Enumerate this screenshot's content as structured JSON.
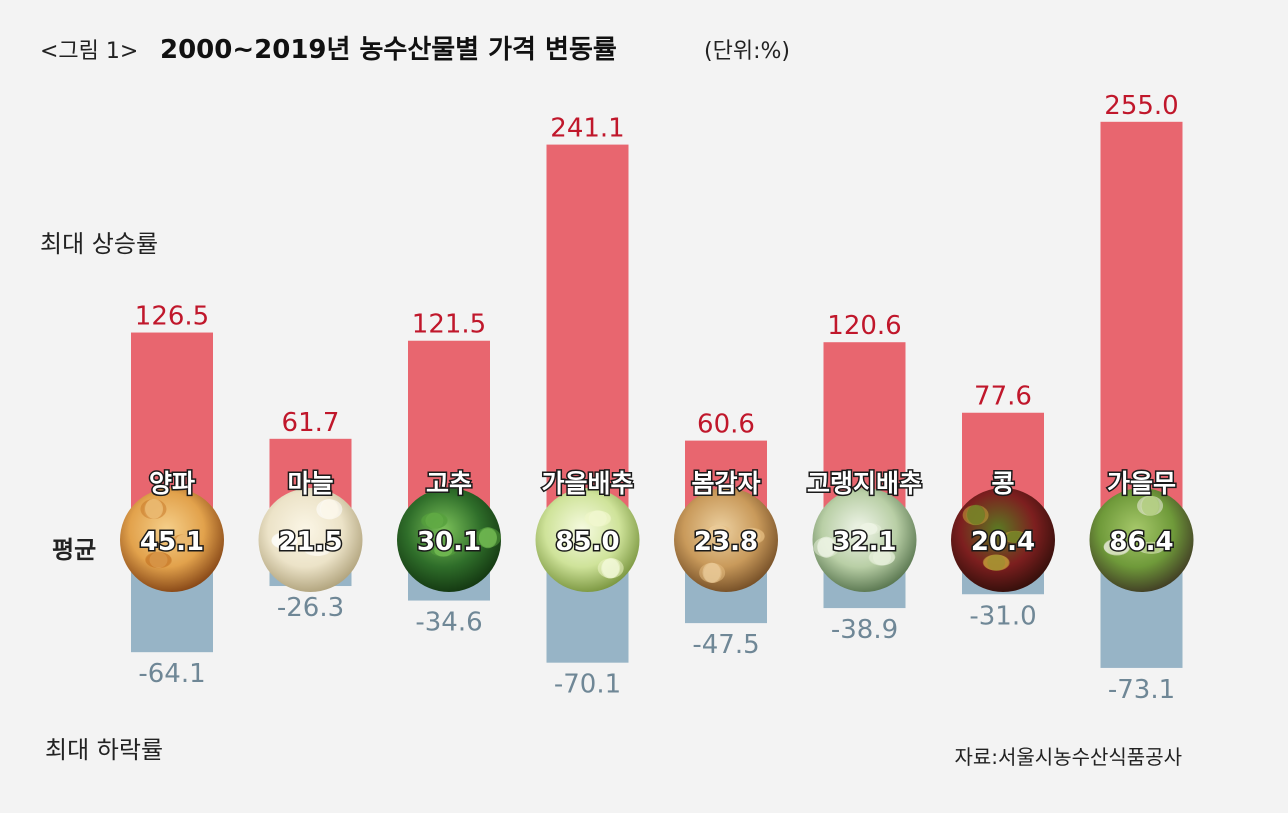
{
  "title": {
    "prefix": "<그림 1>",
    "main": "2000~2019년 농수산물별 가격 변동률",
    "unit": "(단위:%)"
  },
  "labels": {
    "max_side": "최대 상승률",
    "avg_side": "평균",
    "min_side": "최대 하락률"
  },
  "source": "자료:서울시농수산식품공사",
  "colors": {
    "max_bar": "#e8666f",
    "min_bar": "#97b4c6",
    "max_text": "#c0172b",
    "min_text": "#6f8796",
    "background": "#f3f3f3"
  },
  "chart_data": {
    "type": "bar",
    "title": "2000~2019년 농수산물별 가격 변동률",
    "unit": "%",
    "categories": [
      "양파",
      "마늘",
      "고추",
      "가을배추",
      "봄감자",
      "고랭지배추",
      "콩",
      "가을무"
    ],
    "series": [
      {
        "name": "최대 상승률",
        "values": [
          126.5,
          61.7,
          121.5,
          241.1,
          60.6,
          120.6,
          77.6,
          255.0
        ]
      },
      {
        "name": "평균",
        "values": [
          45.1,
          21.5,
          30.1,
          85.0,
          23.8,
          32.1,
          20.4,
          86.4
        ]
      },
      {
        "name": "최대 하락률",
        "values": [
          -64.1,
          -26.3,
          -34.6,
          -70.1,
          -47.5,
          -38.9,
          -31.0,
          -73.1
        ]
      }
    ],
    "display_text": {
      "max": [
        "126.5",
        "61.7",
        "121.5",
        "241.1",
        "60.6",
        "120.6",
        "77.6",
        "255.0"
      ],
      "avg": [
        "45.1",
        "21.5",
        "30.1",
        "85.0",
        "23.8",
        "32.1",
        "20.4",
        "86.4"
      ],
      "min": [
        "-64.1",
        "-26.3",
        "-34.6",
        "-70.1",
        "-47.5",
        "-38.9",
        "-31.0",
        "-73.1"
      ]
    },
    "vegetable_icons": [
      "onion-icon",
      "garlic-icon",
      "chili-pepper-icon",
      "napa-cabbage-icon",
      "potato-icon",
      "highland-cabbage-icon",
      "beans-icon",
      "radish-icon"
    ],
    "grid": false,
    "legend": "none"
  }
}
